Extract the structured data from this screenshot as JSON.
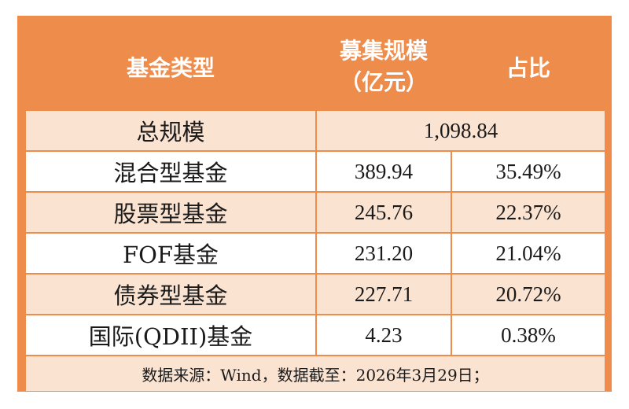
{
  "header": {
    "col1": "基金类型",
    "col2_line1": "募集规模",
    "col2_line2": "（亿元）",
    "col3": "占比"
  },
  "total": {
    "label": "总规模",
    "value": "1,098.84"
  },
  "rows": [
    {
      "type": "混合型基金",
      "amount": "389.94",
      "share": "35.49%"
    },
    {
      "type": "股票型基金",
      "amount": "245.76",
      "share": "22.37%"
    },
    {
      "type": "FOF基金",
      "amount": "231.20",
      "share": "21.04%"
    },
    {
      "type": "债券型基金",
      "amount": "227.71",
      "share": "20.72%"
    },
    {
      "type": "国际(QDII)基金",
      "amount": "4.23",
      "share": "0.38%"
    }
  ],
  "footer": {
    "source": "数据来源：Wind，数据截至：2026年3月29日；"
  },
  "colors": {
    "accent": "#ee8c4c",
    "row_alt": "#fbe3d2",
    "row_plain": "#ffffff"
  }
}
